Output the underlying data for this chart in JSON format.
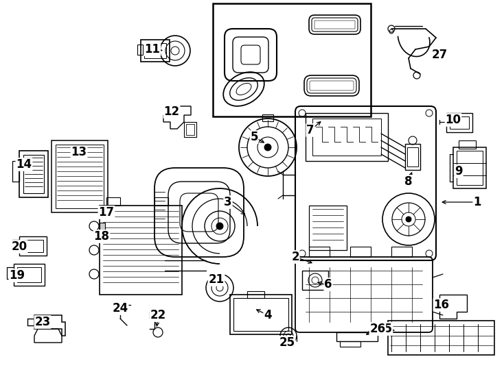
{
  "background_color": "#ffffff",
  "line_color": "#000000",
  "fig_width": 7.34,
  "fig_height": 5.4,
  "dpi": 100,
  "font_size": 12
}
